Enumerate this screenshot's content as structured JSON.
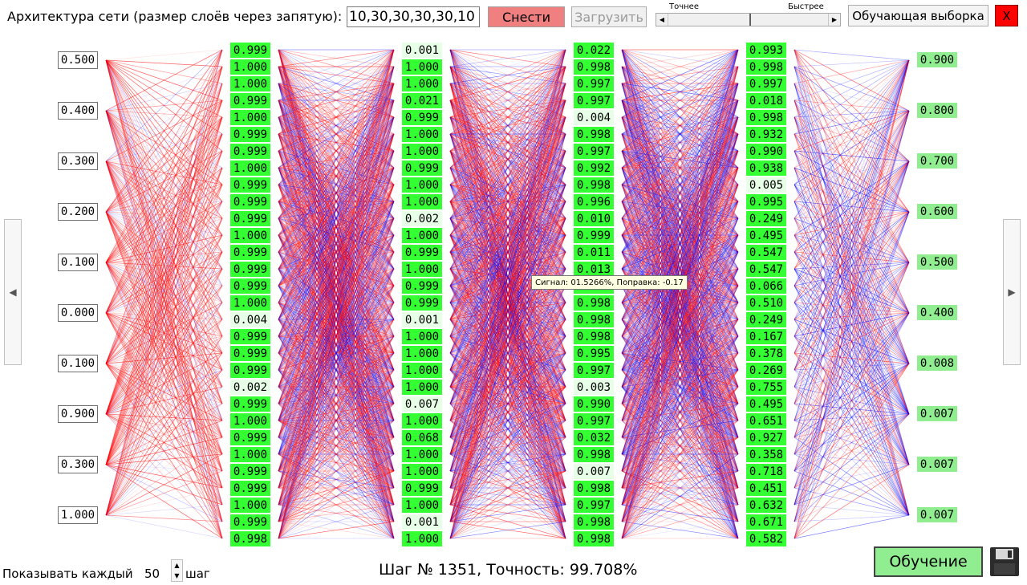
{
  "toolbar": {
    "arch_label": "Архитектура сети (размер слоёв через запятую):",
    "arch_value": "10,30,30,30,30,10",
    "reset_label": "Снести",
    "load_label": "Загрузить",
    "speed_left_label": "Точнее",
    "speed_right_label": "Быстрее",
    "training_set_label": "Обучающая выборка",
    "close_label": "X"
  },
  "network": {
    "inputs": [
      "0.500",
      "0.400",
      "0.300",
      "0.200",
      "0.100",
      "0.000",
      "0.100",
      "0.900",
      "0.300",
      "1.000"
    ],
    "layers": [
      [
        "0.999",
        "1.000",
        "1.000",
        "0.999",
        "1.000",
        "0.999",
        "0.999",
        "1.000",
        "0.999",
        "0.999",
        "0.999",
        "1.000",
        "0.999",
        "0.999",
        "0.999",
        "1.000",
        "0.004",
        "0.999",
        "0.999",
        "0.999",
        "0.002",
        "0.999",
        "1.000",
        "0.999",
        "1.000",
        "0.999",
        "0.999",
        "1.000",
        "0.999",
        "0.998"
      ],
      [
        "0.001",
        "1.000",
        "1.000",
        "0.021",
        "0.999",
        "1.000",
        "1.000",
        "0.999",
        "1.000",
        "1.000",
        "0.002",
        "1.000",
        "0.999",
        "1.000",
        "0.999",
        "0.999",
        "0.001",
        "1.000",
        "1.000",
        "1.000",
        "1.000",
        "0.007",
        "1.000",
        "0.068",
        "1.000",
        "1.000",
        "0.999",
        "1.000",
        "0.001",
        "1.000"
      ],
      [
        "0.022",
        "0.998",
        "0.997",
        "0.997",
        "0.004",
        "0.998",
        "0.997",
        "0.992",
        "0.998",
        "0.996",
        "0.010",
        "0.999",
        "0.011",
        "0.013",
        "0.999",
        "0.998",
        "0.998",
        "0.998",
        "0.995",
        "0.997",
        "0.003",
        "0.990",
        "0.997",
        "0.032",
        "0.998",
        "0.007",
        "0.998",
        "0.997",
        "0.998",
        "0.998"
      ],
      [
        "0.993",
        "0.998",
        "0.997",
        "0.018",
        "0.998",
        "0.932",
        "0.990",
        "0.938",
        "0.005",
        "0.995",
        "0.249",
        "0.495",
        "0.547",
        "0.547",
        "0.066",
        "0.510",
        "0.249",
        "0.167",
        "0.378",
        "0.269",
        "0.755",
        "0.495",
        "0.651",
        "0.927",
        "0.358",
        "0.718",
        "0.451",
        "0.632",
        "0.671",
        "0.582"
      ]
    ],
    "outputs": [
      "0.900",
      "0.800",
      "0.700",
      "0.600",
      "0.500",
      "0.400",
      "0.008",
      "0.007",
      "0.007",
      "0.007"
    ],
    "colors": {
      "positive": "#ff0000",
      "negative": "#0000ff",
      "neuron_active": "#33ff33",
      "neuron_inactive": "#e6ffe6",
      "output": "#90ee90"
    }
  },
  "tooltip": {
    "text": "Сигнал: 01.5266%, Поправка: -0.17"
  },
  "footer": {
    "show_every_label": "Показывать каждый",
    "show_every_value": "50",
    "show_every_unit": "шаг",
    "status": "Шаг № 1351, Точность: 99.708%",
    "train_label": "Обучение"
  },
  "icons": {
    "save": "floppy-disk-icon",
    "nav_left": "arrow-left-icon",
    "nav_right": "arrow-right-icon"
  }
}
